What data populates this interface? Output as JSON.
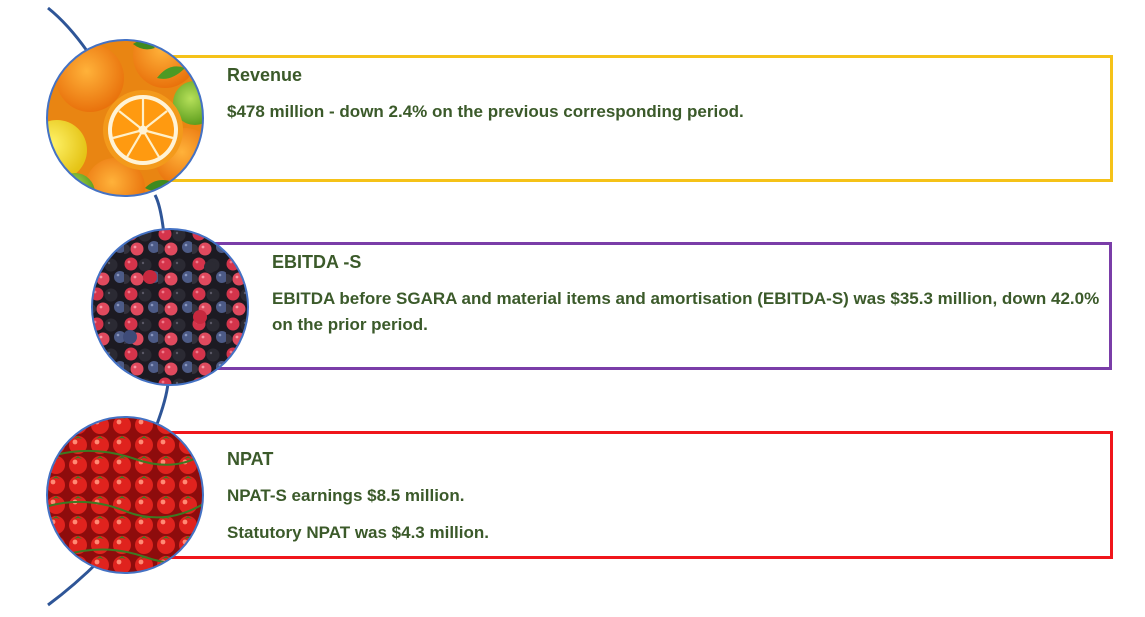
{
  "items": [
    {
      "title": "Revenue",
      "lines": [
        "$478 million - down 2.4% on the previous corresponding period."
      ],
      "border_color": "#F5C218",
      "image": "citrus-fruit-photo"
    },
    {
      "title": "EBITDA -S",
      "lines": [
        "EBITDA before SGARA and material items and amortisation (EBITDA-S) was $35.3 million, down 42.0% on the prior period."
      ],
      "border_color": "#7A3DA8",
      "image": "berries-photo"
    },
    {
      "title": "NPAT",
      "lines": [
        "NPAT-S earnings $8.5 million.",
        "Statutory NPAT was $4.3 million."
      ],
      "border_color": "#F0161B",
      "image": "tomatoes-photo"
    }
  ],
  "colors": {
    "text": "#3B5A2A",
    "connector": "#2E5597",
    "circle_outline": "#4472C4"
  }
}
